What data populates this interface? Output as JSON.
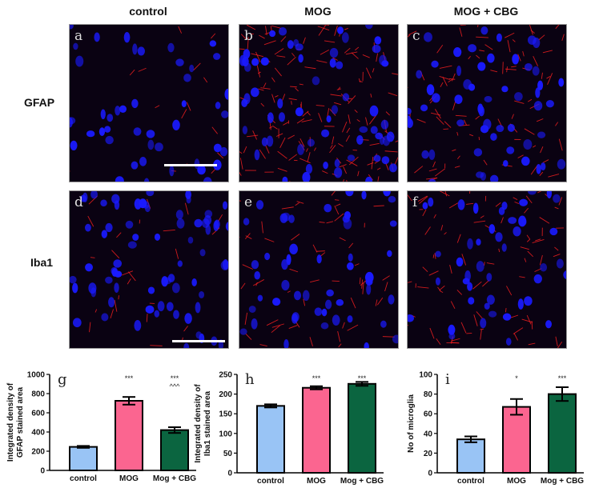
{
  "columns": [
    "control",
    "MOG",
    "MOG + CBG"
  ],
  "rows": [
    "GFAP",
    "Iba1"
  ],
  "panels": [
    {
      "label": "a",
      "scale_bar": true
    },
    {
      "label": "b",
      "scale_bar": false
    },
    {
      "label": "c",
      "scale_bar": false
    },
    {
      "label": "d",
      "scale_bar": true
    },
    {
      "label": "e",
      "scale_bar": false
    },
    {
      "label": "f",
      "scale_bar": false
    }
  ],
  "colors": {
    "nuclei": "#1a1aff",
    "stain": "#ff2020",
    "background": "#0a0212"
  },
  "chart_data": [
    {
      "type": "bar",
      "panel_label": "g",
      "categories": [
        "control",
        "MOG",
        "Mog + CBG"
      ],
      "values": [
        245,
        725,
        420
      ],
      "errors": [
        10,
        40,
        30
      ],
      "annotations": [
        "",
        "***",
        "***\n^^^"
      ],
      "ylabel": "Integrated density of GFAP stained area",
      "ylim": [
        0,
        1000
      ],
      "yticks": [
        0,
        200,
        400,
        600,
        800,
        1000
      ],
      "bar_colors": [
        "#99c4f5",
        "#fb6590",
        "#0b6540"
      ]
    },
    {
      "type": "bar",
      "panel_label": "h",
      "categories": [
        "control",
        "MOG",
        "Mog + CBG"
      ],
      "values": [
        170,
        216,
        226
      ],
      "errors": [
        4,
        4,
        5
      ],
      "annotations": [
        "",
        "***",
        "***"
      ],
      "ylabel": "Integrated density of Iba1 stained area",
      "ylim": [
        0,
        250
      ],
      "yticks": [
        0,
        50,
        100,
        150,
        200,
        250
      ],
      "bar_colors": [
        "#99c4f5",
        "#fb6590",
        "#0b6540"
      ]
    },
    {
      "type": "bar",
      "panel_label": "i",
      "categories": [
        "control",
        "MOG",
        "Mog + CBG"
      ],
      "values": [
        34,
        67,
        80
      ],
      "errors": [
        3,
        8,
        7
      ],
      "annotations": [
        "",
        "*",
        "***"
      ],
      "ylabel": "No of microglia",
      "ylim": [
        0,
        100
      ],
      "yticks": [
        0,
        20,
        40,
        60,
        80,
        100
      ],
      "bar_colors": [
        "#99c4f5",
        "#fb6590",
        "#0b6540"
      ]
    }
  ]
}
